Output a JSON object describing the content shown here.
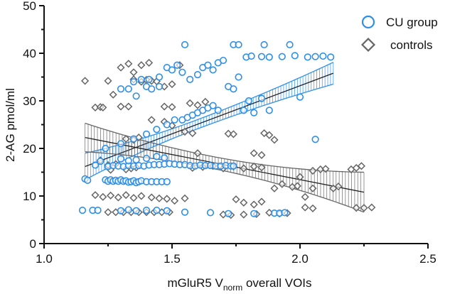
{
  "chart_data": {
    "type": "scatter",
    "xlabel_parts": [
      "mGluR5 V",
      "norm",
      " overall VOIs"
    ],
    "ylabel": "2-AG pmol/ml",
    "xlim": [
      1.0,
      2.5
    ],
    "ylim": [
      0,
      50
    ],
    "xticks": [
      "1.0",
      "1.5",
      "2.0",
      "2.5"
    ],
    "yticks": [
      "0",
      "10",
      "20",
      "30",
      "40",
      "50"
    ],
    "grid": false,
    "legend_position": "top-right",
    "colors": {
      "cu": "#2f8fe8",
      "controls": "#666666",
      "axis": "#111111"
    },
    "series": [
      {
        "name": "CU group",
        "marker": "circle",
        "regression": {
          "x": [
            1.16,
            2.13
          ],
          "y": [
            16.2,
            35.8
          ],
          "ci_half_width": [
            2.8,
            2.3
          ]
        },
        "points": [
          [
            1.16,
            13.6
          ],
          [
            1.17,
            13.3
          ],
          [
            1.15,
            7.0
          ],
          [
            1.19,
            7.0
          ],
          [
            1.21,
            7.0
          ],
          [
            1.2,
            16.5
          ],
          [
            1.22,
            17.3
          ],
          [
            1.24,
            13.4
          ],
          [
            1.25,
            13.1
          ],
          [
            1.26,
            13.4
          ],
          [
            1.27,
            13.1
          ],
          [
            1.28,
            13.3
          ],
          [
            1.29,
            13.1
          ],
          [
            1.3,
            13.4
          ],
          [
            1.31,
            13.1
          ],
          [
            1.32,
            13.2
          ],
          [
            1.33,
            12.9
          ],
          [
            1.34,
            13.0
          ],
          [
            1.35,
            13.2
          ],
          [
            1.36,
            12.8
          ],
          [
            1.37,
            13.0
          ],
          [
            1.38,
            13.2
          ],
          [
            1.4,
            13.0
          ],
          [
            1.42,
            13.0
          ],
          [
            1.44,
            13.0
          ],
          [
            1.46,
            13.0
          ],
          [
            1.48,
            13.0
          ],
          [
            1.25,
            16.2
          ],
          [
            1.27,
            16.4
          ],
          [
            1.29,
            16.3
          ],
          [
            1.31,
            16.2
          ],
          [
            1.33,
            16.4
          ],
          [
            1.35,
            16.3
          ],
          [
            1.37,
            16.4
          ],
          [
            1.39,
            16.3
          ],
          [
            1.41,
            16.5
          ],
          [
            1.43,
            16.6
          ],
          [
            1.45,
            16.6
          ],
          [
            1.47,
            16.7
          ],
          [
            1.49,
            16.8
          ],
          [
            1.51,
            16.7
          ],
          [
            1.53,
            16.6
          ],
          [
            1.55,
            16.6
          ],
          [
            1.57,
            16.4
          ],
          [
            1.59,
            16.3
          ],
          [
            1.61,
            16.5
          ],
          [
            1.63,
            16.4
          ],
          [
            1.65,
            16.4
          ],
          [
            1.67,
            16.3
          ],
          [
            1.69,
            16.3
          ],
          [
            1.71,
            16.4
          ],
          [
            1.73,
            16.3
          ],
          [
            1.74,
            16.3
          ],
          [
            1.3,
            17.8
          ],
          [
            1.33,
            17.4
          ],
          [
            1.36,
            17.6
          ],
          [
            1.4,
            17.9
          ],
          [
            1.44,
            18.3
          ],
          [
            1.47,
            18.0
          ],
          [
            1.24,
            20.0
          ],
          [
            1.3,
            21.0
          ],
          [
            1.35,
            22.0
          ],
          [
            1.4,
            23.0
          ],
          [
            1.44,
            24.0
          ],
          [
            1.48,
            25.0
          ],
          [
            1.51,
            26.0
          ],
          [
            1.54,
            26.0
          ],
          [
            1.56,
            26.5
          ],
          [
            1.58,
            27.0
          ],
          [
            1.6,
            27.5
          ],
          [
            1.62,
            28.0
          ],
          [
            1.64,
            28.5
          ],
          [
            1.66,
            29.0
          ],
          [
            1.68,
            28.0
          ],
          [
            1.3,
            32.5
          ],
          [
            1.33,
            32.5
          ],
          [
            1.36,
            31.0
          ],
          [
            1.4,
            33.0
          ],
          [
            1.42,
            32.5
          ],
          [
            1.45,
            33.0
          ],
          [
            1.35,
            34.0
          ],
          [
            1.38,
            34.5
          ],
          [
            1.41,
            34.5
          ],
          [
            1.45,
            35.0
          ],
          [
            1.48,
            37.0
          ],
          [
            1.5,
            36.5
          ],
          [
            1.52,
            37.5
          ],
          [
            1.54,
            36.0
          ],
          [
            1.57,
            34.5
          ],
          [
            1.6,
            35.5
          ],
          [
            1.62,
            37.0
          ],
          [
            1.64,
            37.5
          ],
          [
            1.66,
            36.5
          ],
          [
            1.68,
            38.0
          ],
          [
            1.7,
            38.5
          ],
          [
            1.72,
            33.0
          ],
          [
            1.74,
            32.5
          ],
          [
            1.76,
            35.0
          ],
          [
            1.78,
            28.0
          ],
          [
            1.8,
            30.0
          ],
          [
            1.82,
            27.5
          ],
          [
            1.85,
            30.5
          ],
          [
            1.88,
            28.0
          ],
          [
            1.55,
            41.8
          ],
          [
            1.74,
            41.8
          ],
          [
            1.76,
            41.8
          ],
          [
            1.86,
            41.8
          ],
          [
            1.96,
            41.8
          ],
          [
            1.79,
            39.2
          ],
          [
            1.81,
            39.4
          ],
          [
            1.85,
            39.3
          ],
          [
            1.88,
            39.2
          ],
          [
            1.93,
            39.3
          ],
          [
            1.98,
            39.5
          ],
          [
            2.03,
            39.2
          ],
          [
            2.06,
            39.3
          ],
          [
            2.09,
            39.4
          ],
          [
            2.12,
            39.2
          ],
          [
            2.0,
            30.8
          ],
          [
            2.06,
            21.9
          ],
          [
            1.3,
            6.9
          ],
          [
            1.33,
            7.1
          ],
          [
            1.36,
            6.9
          ],
          [
            1.4,
            7.0
          ],
          [
            1.44,
            7.0
          ],
          [
            1.48,
            6.9
          ],
          [
            1.55,
            6.6
          ],
          [
            1.65,
            6.5
          ],
          [
            1.72,
            6.3
          ],
          [
            1.82,
            6.3
          ],
          [
            1.9,
            6.4
          ],
          [
            1.92,
            6.4
          ],
          [
            1.94,
            6.5
          ]
        ]
      },
      {
        "name": "controls",
        "marker": "diamond",
        "regression": {
          "x": [
            1.16,
            2.25
          ],
          "y": [
            22.3,
            10.8
          ],
          "ci_half_width": [
            3.0,
            4.2
          ]
        },
        "points": [
          [
            1.16,
            34.2
          ],
          [
            1.2,
            28.6
          ],
          [
            1.22,
            28.7
          ],
          [
            1.23,
            28.6
          ],
          [
            1.25,
            34.2
          ],
          [
            1.27,
            31.3
          ],
          [
            1.3,
            28.8
          ],
          [
            1.33,
            28.8
          ],
          [
            1.35,
            34.5
          ],
          [
            1.38,
            34.0
          ],
          [
            1.4,
            34.4
          ],
          [
            1.42,
            34.2
          ],
          [
            1.44,
            34.1
          ],
          [
            1.35,
            36.0
          ],
          [
            1.38,
            37.5
          ],
          [
            1.41,
            38.0
          ],
          [
            1.3,
            37.0
          ],
          [
            1.33,
            37.8
          ],
          [
            1.47,
            33.0
          ],
          [
            1.5,
            33.5
          ],
          [
            1.53,
            37.5
          ],
          [
            1.47,
            28.8
          ],
          [
            1.5,
            28.7
          ],
          [
            1.42,
            26.0
          ],
          [
            1.47,
            25.6
          ],
          [
            1.5,
            24.8
          ],
          [
            1.32,
            22.0
          ],
          [
            1.35,
            21.8
          ],
          [
            1.37,
            22.3
          ],
          [
            1.22,
            17.5
          ],
          [
            1.25,
            16.5
          ],
          [
            1.26,
            15.5
          ],
          [
            1.28,
            16.7
          ],
          [
            1.32,
            15.6
          ],
          [
            1.34,
            15.8
          ],
          [
            1.36,
            16.0
          ],
          [
            1.2,
            10.2
          ],
          [
            1.23,
            9.8
          ],
          [
            1.26,
            10.1
          ],
          [
            1.29,
            9.7
          ],
          [
            1.32,
            10.2
          ],
          [
            1.35,
            9.6
          ],
          [
            1.38,
            10.0
          ],
          [
            1.42,
            9.7
          ],
          [
            1.45,
            9.5
          ],
          [
            1.48,
            9.4
          ],
          [
            1.51,
            9.0
          ],
          [
            1.55,
            9.5
          ],
          [
            1.25,
            6.6
          ],
          [
            1.28,
            6.6
          ],
          [
            1.31,
            6.6
          ],
          [
            1.34,
            6.6
          ],
          [
            1.37,
            6.6
          ],
          [
            1.4,
            6.6
          ],
          [
            1.43,
            6.6
          ],
          [
            1.46,
            6.6
          ],
          [
            1.49,
            6.6
          ],
          [
            1.58,
            15.9
          ],
          [
            1.62,
            16.1
          ],
          [
            1.66,
            16.3
          ],
          [
            1.7,
            15.8
          ],
          [
            1.74,
            16.2
          ],
          [
            1.78,
            15.8
          ],
          [
            1.82,
            16.2
          ],
          [
            1.85,
            16.0
          ],
          [
            1.55,
            23.5
          ],
          [
            1.58,
            23.2
          ],
          [
            1.72,
            23.1
          ],
          [
            1.74,
            23.0
          ],
          [
            1.86,
            23.2
          ],
          [
            1.88,
            22.8
          ],
          [
            1.9,
            21.8
          ],
          [
            1.82,
            19.0
          ],
          [
            1.85,
            18.6
          ],
          [
            1.6,
            19.0
          ],
          [
            1.57,
            29.5
          ],
          [
            1.6,
            29.1
          ],
          [
            1.63,
            29.8
          ],
          [
            1.7,
            6.1
          ],
          [
            1.73,
            6.0
          ],
          [
            1.78,
            6.1
          ],
          [
            1.83,
            6.2
          ],
          [
            1.88,
            6.5
          ],
          [
            1.92,
            6.3
          ],
          [
            1.95,
            6.4
          ],
          [
            1.75,
            9.3
          ],
          [
            1.78,
            8.6
          ],
          [
            1.82,
            8.2
          ],
          [
            1.85,
            8.8
          ],
          [
            1.97,
            11.9
          ],
          [
            1.99,
            12.1
          ],
          [
            2.02,
            9.8
          ],
          [
            2.05,
            11.6
          ],
          [
            2.0,
            14.0
          ],
          [
            2.05,
            15.3
          ],
          [
            2.08,
            15.6
          ],
          [
            2.1,
            15.7
          ],
          [
            2.02,
            7.6
          ],
          [
            2.05,
            7.4
          ],
          [
            2.13,
            11.6
          ],
          [
            2.15,
            12.0
          ],
          [
            2.2,
            15.6
          ],
          [
            2.22,
            15.9
          ],
          [
            2.24,
            16.3
          ],
          [
            2.22,
            7.5
          ],
          [
            2.25,
            7.5
          ],
          [
            2.28,
            7.6
          ],
          [
            1.9,
            11.6
          ],
          [
            1.93,
            12.5
          ]
        ]
      }
    ]
  }
}
